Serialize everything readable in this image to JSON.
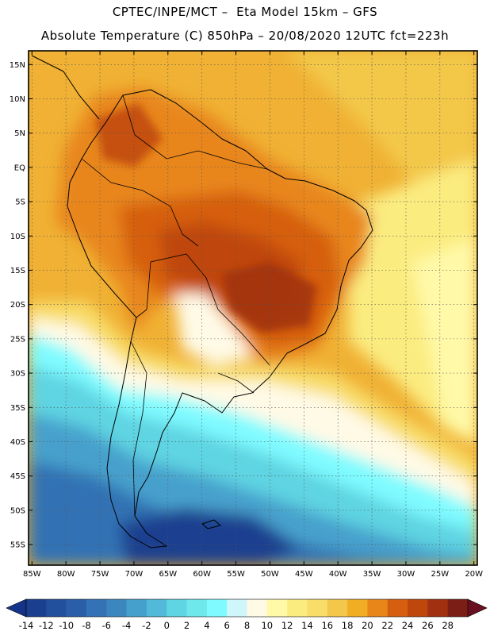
{
  "header": {
    "line1": "CPTEC/INPE/MCT –  Eta Model 15km – GFS",
    "line2": "Absolute Temperature (C) 850hPa – 20/08/2020 12UTC fct=223h"
  },
  "map": {
    "lat_labels": [
      "15N",
      "10N",
      "5N",
      "EQ",
      "5S",
      "10S",
      "15S",
      "20S",
      "25S",
      "30S",
      "35S",
      "40S",
      "45S",
      "50S",
      "55S"
    ],
    "lon_labels": [
      "85W",
      "80W",
      "75W",
      "70W",
      "65W",
      "60W",
      "55W",
      "50W",
      "45W",
      "40W",
      "35W",
      "30W",
      "25W",
      "20W"
    ],
    "lat_values": [
      15,
      10,
      5,
      0,
      -5,
      -10,
      -15,
      -20,
      -25,
      -30,
      -35,
      -40,
      -45,
      -50,
      -55
    ],
    "lon_values": [
      -85,
      -80,
      -75,
      -70,
      -65,
      -60,
      -55,
      -50,
      -45,
      -40,
      -35,
      -30,
      -25,
      -20
    ],
    "extent": {
      "lon_min": -85.5,
      "lon_max": -19.5,
      "lat_min": -58.0,
      "lat_max": 17.0
    },
    "field": "Absolute Temperature (C) at 850hPa"
  },
  "colorbar": {
    "labels": [
      "-14",
      "-12",
      "-10",
      "-8",
      "-6",
      "-4",
      "-2",
      "0",
      "2",
      "4",
      "6",
      "8",
      "10",
      "12",
      "14",
      "16",
      "18",
      "20",
      "22",
      "24",
      "26",
      "28"
    ],
    "colors": [
      "#1b3f8f",
      "#22509d",
      "#2a5fa8",
      "#3372b4",
      "#3c86bf",
      "#46a0cc",
      "#52bad8",
      "#5fd4e2",
      "#6ee8ea",
      "#7ffbff",
      "#cff7fb",
      "#fffae6",
      "#fff9a8",
      "#fbec80",
      "#f8dd6a",
      "#f3c84a",
      "#f1ad24",
      "#e8861a",
      "#d65e0f",
      "#bf470c",
      "#a03010",
      "#7b1e15"
    ],
    "under_color": "#14348a",
    "over_color": "#6a0f22"
  }
}
